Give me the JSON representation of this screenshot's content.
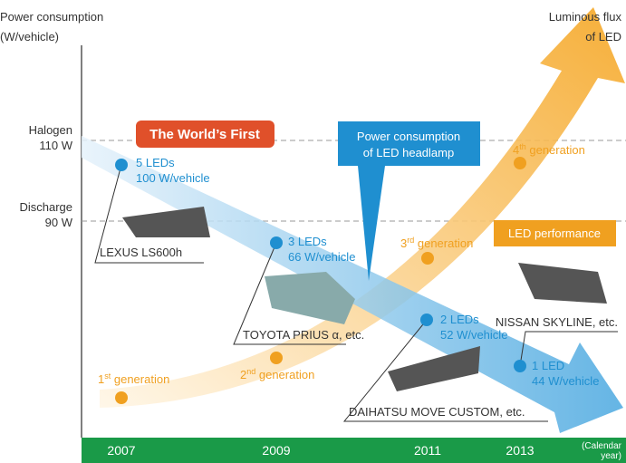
{
  "axis": {
    "title": [
      "Power consumption",
      "(W/vehicle)"
    ],
    "right_title": [
      "Luminous flux",
      "of LED"
    ],
    "levels": [
      {
        "name": "Halogen",
        "value": "110 W"
      },
      {
        "name": "Discharge",
        "value": "90 W"
      }
    ]
  },
  "callouts": {
    "first": "The World’s First",
    "headlamp": [
      "Power consumption",
      "of LED headlamp"
    ],
    "performance": "LED performance"
  },
  "power_points": [
    {
      "leds": "5 LEDs",
      "watts": "100 W/vehicle",
      "car": "LEXUS LS600h"
    },
    {
      "leds": "3 LEDs",
      "watts": "66 W/vehicle",
      "car": "TOYOTA PRIUS α, etc."
    },
    {
      "leds": "2 LEDs",
      "watts": "52 W/vehicle",
      "car": "DAIHATSU MOVE CUSTOM, etc."
    },
    {
      "leds": "1 LED",
      "watts": "44 W/vehicle",
      "car": "NISSAN SKYLINE, etc."
    }
  ],
  "generations": [
    {
      "number": "1",
      "suffix": "st",
      "text": " generation"
    },
    {
      "number": "2",
      "suffix": "nd",
      "text": " generation"
    },
    {
      "number": "3",
      "suffix": "rd",
      "text": " generation"
    },
    {
      "number": "4",
      "suffix": "th",
      "text": " generation"
    }
  ],
  "years": [
    "2007",
    "2009",
    "2011",
    "2013"
  ],
  "year_unit": [
    "(Calendar",
    "year)"
  ]
}
